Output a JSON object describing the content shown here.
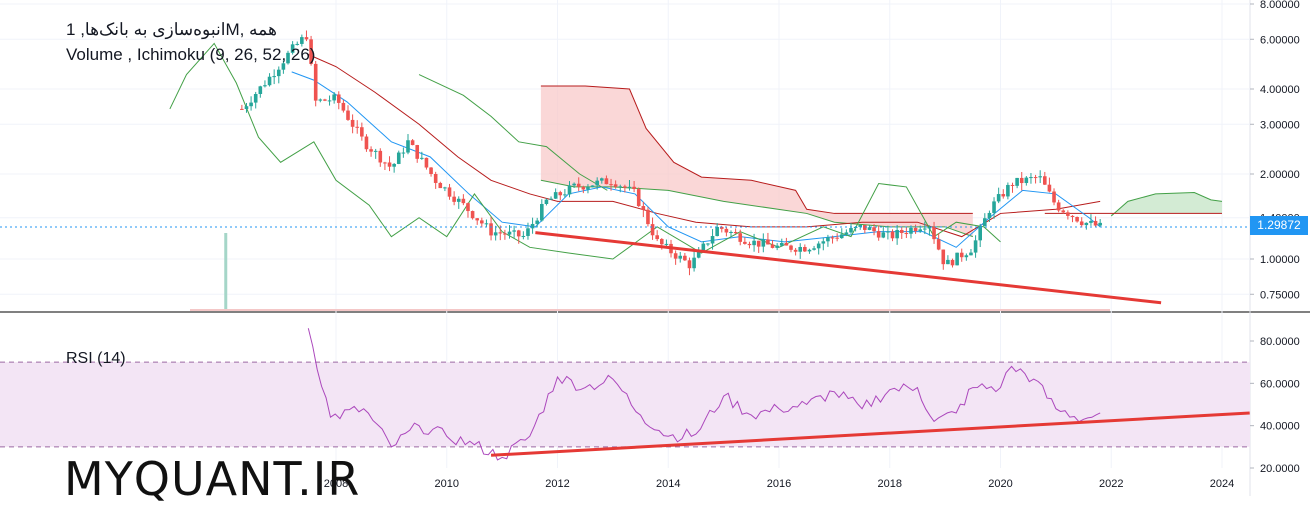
{
  "header": {
    "title": "انبوه‌سازی به بانک‌ها, 1M, همه",
    "indicators": "Volume , Ichimoku (9, 26, 52, 26)"
  },
  "rsi_panel": {
    "label": "RSI (14)"
  },
  "watermark": "MYQUANT.IR",
  "last_price_label": "1.29872",
  "colors": {
    "up": "#26a69a",
    "down": "#ef5350",
    "tenkan": "#2196f3",
    "kijun": "#b71c1c",
    "chikou": "#43a047",
    "cloud_bear": "#f8c9c9",
    "cloud_bull": "#c8e6c9",
    "rsi_line": "#ab47bc",
    "rsi_band": "#f3e5f5",
    "trendline": "#e53935"
  },
  "chart_data": [
    {
      "type": "candlestick",
      "panel": "price",
      "title": "انبوه‌سازی به بانک‌ها, 1M, همه",
      "y_scale": "log",
      "ylim": [
        0.7,
        8.0
      ],
      "y_ticks": [
        "0.75000",
        "1.00000",
        "1.40000",
        "2.00000",
        "3.00000",
        "4.00000",
        "6.00000",
        "8.00000"
      ],
      "x_ticks": [
        "2008",
        "2010",
        "2012",
        "2014",
        "2016",
        "2018",
        "2020",
        "2022",
        "2024"
      ],
      "last_price": "1.29872",
      "series_approx": {
        "close_path": [
          [
            "2006.3",
            3.4
          ],
          [
            "2006.8",
            4.4
          ],
          [
            "2007.2",
            5.5
          ],
          [
            "2007.5",
            6.3
          ],
          [
            "2007.6",
            3.6
          ],
          [
            "2008.0",
            3.7
          ],
          [
            "2008.5",
            2.6
          ],
          [
            "2009.0",
            2.1
          ],
          [
            "2009.3",
            2.6
          ],
          [
            "2009.8",
            1.9
          ],
          [
            "2010.3",
            1.55
          ],
          [
            "2010.8",
            1.25
          ],
          [
            "2011.4",
            1.2
          ],
          [
            "2011.8",
            1.6
          ],
          [
            "2012.3",
            1.8
          ],
          [
            "2013.0",
            1.9
          ],
          [
            "2013.4",
            1.7
          ],
          [
            "2013.8",
            1.15
          ],
          [
            "2014.4",
            0.95
          ],
          [
            "2014.9",
            1.3
          ],
          [
            "2015.5",
            1.15
          ],
          [
            "2016.0",
            1.1
          ],
          [
            "2016.5",
            1.1
          ],
          [
            "2017.0",
            1.2
          ],
          [
            "2017.5",
            1.3
          ],
          [
            "2018.0",
            1.2
          ],
          [
            "2018.7",
            1.35
          ],
          [
            "2019.0",
            0.95
          ],
          [
            "2019.5",
            1.1
          ],
          [
            "2019.8",
            1.5
          ],
          [
            "2020.2",
            1.85
          ],
          [
            "2020.7",
            1.95
          ],
          [
            "2021.0",
            1.55
          ],
          [
            "2021.5",
            1.35
          ],
          [
            "2021.8",
            1.3
          ]
        ]
      },
      "cloud_bear_span": [
        "2011.7",
        "2019.5"
      ],
      "cloud_bull_span": [
        "2022.0",
        "2024.0"
      ],
      "trendline": [
        [
          "2011.6",
          1.24
        ],
        [
          "2022.9",
          0.7
        ]
      ]
    },
    {
      "type": "line",
      "panel": "rsi",
      "title": "RSI (14)",
      "ylim": [
        20,
        90
      ],
      "y_ticks": [
        "20.0000",
        "40.0000",
        "60.0000",
        "80.0000"
      ],
      "band": [
        30,
        70
      ],
      "series": [
        {
          "values": [
            [
              "2007.5",
              86
            ],
            [
              "2007.9",
              44
            ],
            [
              "2008.5",
              48
            ],
            [
              "2009.0",
              30
            ],
            [
              "2009.5",
              40
            ],
            [
              "2010.0",
              35
            ],
            [
              "2010.5",
              31
            ],
            [
              "2011.0",
              25
            ],
            [
              "2011.5",
              35
            ],
            [
              "2012.0",
              63
            ],
            [
              "2012.5",
              58
            ],
            [
              "2013.0",
              62
            ],
            [
              "2013.5",
              45
            ],
            [
              "2014.0",
              35
            ],
            [
              "2014.5",
              36
            ],
            [
              "2015.0",
              54
            ],
            [
              "2015.5",
              45
            ],
            [
              "2016.0",
              48
            ],
            [
              "2016.5",
              50
            ],
            [
              "2017.0",
              56
            ],
            [
              "2017.5",
              48
            ],
            [
              "2018.0",
              57
            ],
            [
              "2018.5",
              58
            ],
            [
              "2018.8",
              42
            ],
            [
              "2019.2",
              46
            ],
            [
              "2019.5",
              58
            ],
            [
              "2020.0",
              58
            ],
            [
              "2020.2",
              68
            ],
            [
              "2020.6",
              62
            ],
            [
              "2021.0",
              48
            ],
            [
              "2021.5",
              43
            ],
            [
              "2021.8",
              46
            ]
          ]
        }
      ],
      "trendline": [
        [
          "2010.8",
          26
        ],
        [
          "2024.5",
          46
        ]
      ]
    }
  ]
}
